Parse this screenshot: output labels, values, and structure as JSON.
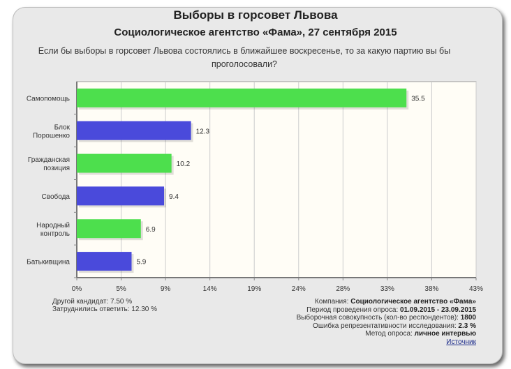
{
  "chart_data": {
    "type": "bar",
    "orientation": "horizontal",
    "title": "Выборы в горсовет Львова",
    "subtitle": "Социологическое агентство «Фама», 27 сентября 2015",
    "question": "Если бы выборы в горсовет Львова состоялись в ближайшее воскресенье, то за какую партию вы бы проголосовали?",
    "categories": [
      "Самопомощь",
      "Блок Порошенко",
      "Гражданская позиция",
      "Свобода",
      "Народный контроль",
      "Батькивщина"
    ],
    "category_lines": [
      [
        "Самопомощь"
      ],
      [
        "Блок",
        "Порошенко"
      ],
      [
        "Гражданская",
        "позиция"
      ],
      [
        "Свобода"
      ],
      [
        "Народный",
        "контроль"
      ],
      [
        "Батькивщина"
      ]
    ],
    "values": [
      35.5,
      12.3,
      10.2,
      9.4,
      6.9,
      5.9
    ],
    "value_labels": [
      "35.5",
      "12.3",
      "10.2",
      "9.4",
      "6.9",
      "5.9"
    ],
    "colors": [
      "#4ddf4d",
      "#4a4adb",
      "#4ddf4d",
      "#4a4adb",
      "#4ddf4d",
      "#4a4adb"
    ],
    "xlim": [
      0,
      43
    ],
    "xticks": [
      "0%",
      "5%",
      "9%",
      "14%",
      "19%",
      "24%",
      "28%",
      "33%",
      "38%",
      "43%"
    ],
    "grid": true
  },
  "footer": {
    "other": "Другой кандидат: 7.50 %",
    "undecided": "Затруднились ответить: 12.30 %",
    "company_label": "Компания: ",
    "company": "Социологическое агентство «Фама»",
    "period_label": "Период проведения опроса: ",
    "period": "01.09.2015 - 23.09.2015",
    "sample_label": "Выборочная совокупность (кол-во респондентов): ",
    "sample": "1800",
    "error_label": "Ошибка репрезентативности исследования: ",
    "error": "2.3 %",
    "method_label": "Метод опроса: ",
    "method": "личное интервью",
    "source": "Источник"
  }
}
